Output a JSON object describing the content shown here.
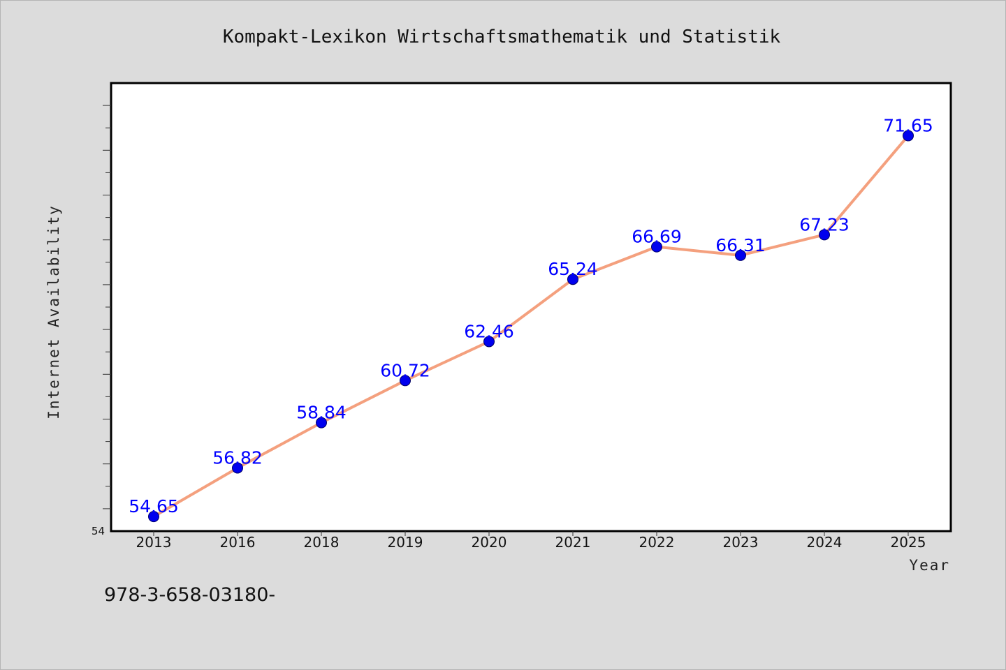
{
  "chart_data": {
    "type": "line",
    "title": "Kompakt-Lexikon Wirtschaftsmathematik und Statistik",
    "xlabel": "Year",
    "ylabel": "Internet Availability",
    "categories": [
      "2013",
      "2016",
      "2018",
      "2019",
      "2020",
      "2021",
      "2022",
      "2023",
      "2024",
      "2025"
    ],
    "series": [
      {
        "values": [
          54.65,
          56.82,
          58.84,
          60.72,
          62.46,
          65.24,
          66.69,
          66.31,
          67.23,
          71.65
        ],
        "labels": [
          "54.65",
          "56.82",
          "58.84",
          "60.72",
          "62.46",
          "65.24",
          "66.69",
          "66.31",
          "67.23",
          "71.65"
        ]
      }
    ],
    "ylim": [
      54,
      74
    ],
    "y_tick_labels": [
      "54"
    ],
    "grid": false,
    "legend": "none",
    "colors": {
      "line": "#f4a07e",
      "marker": "#0000ee",
      "marker_edge": "#000066",
      "data_label": "#0000ff",
      "background": "#dcdcdc",
      "plot_background": "#ffffff"
    }
  },
  "footer": {
    "text": "978-3-658-03180-"
  }
}
